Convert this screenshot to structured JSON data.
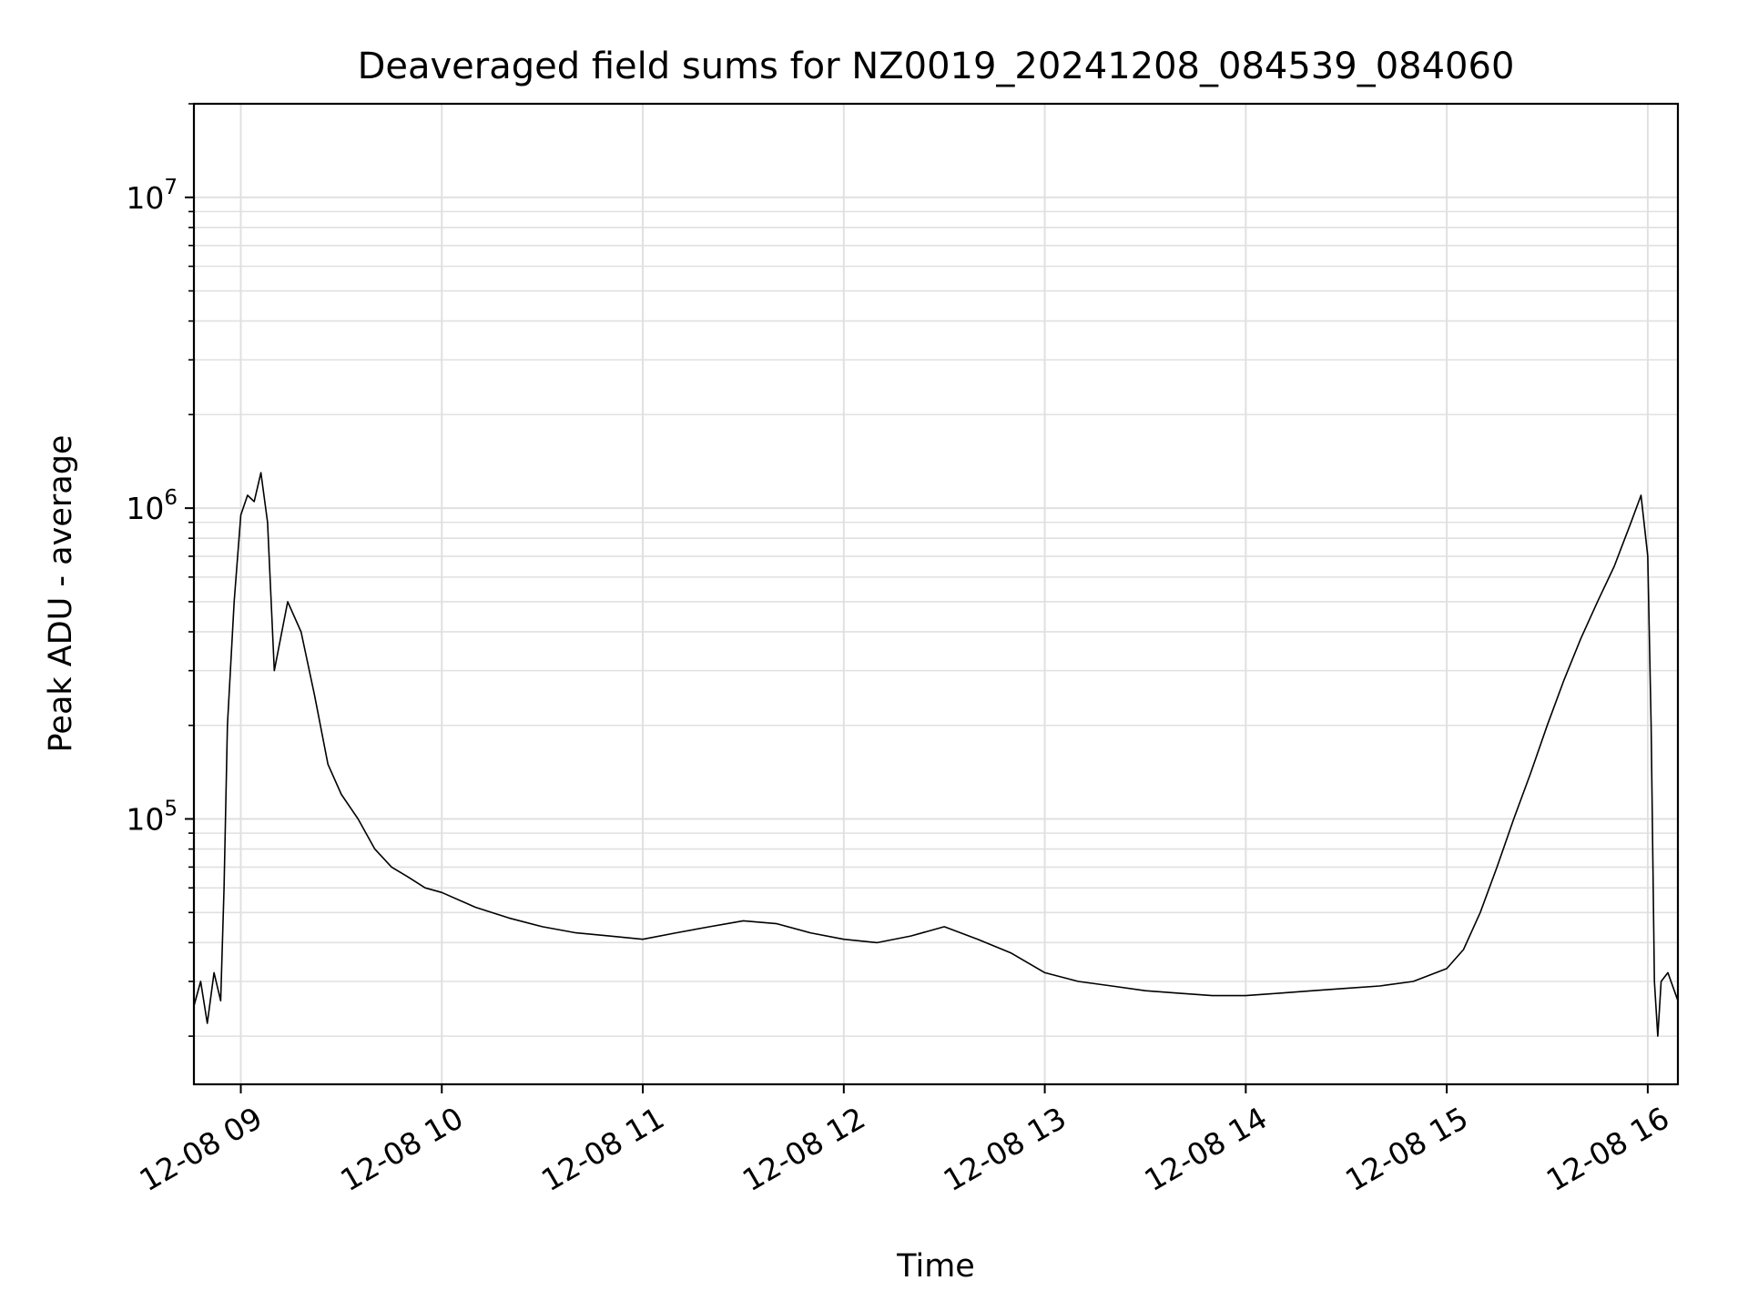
{
  "chart_data": {
    "type": "line",
    "title": "Deaveraged field sums for NZ0019_20241208_084539_084060",
    "xlabel": "Time",
    "ylabel": "Peak ADU - average",
    "yscale": "log",
    "xlim": [
      "2024-12-08 08:46",
      "2024-12-08 16:09"
    ],
    "ylim": [
      14000,
      20000000
    ],
    "grid": true,
    "line_color": "#000000",
    "grid_color": "#e0e0e0",
    "x_ticks": [
      {
        "value": "2024-12-08 09:00",
        "label": "12-08 09"
      },
      {
        "value": "2024-12-08 10:00",
        "label": "12-08 10"
      },
      {
        "value": "2024-12-08 11:00",
        "label": "12-08 11"
      },
      {
        "value": "2024-12-08 12:00",
        "label": "12-08 12"
      },
      {
        "value": "2024-12-08 13:00",
        "label": "12-08 13"
      },
      {
        "value": "2024-12-08 14:00",
        "label": "12-08 14"
      },
      {
        "value": "2024-12-08 15:00",
        "label": "12-08 15"
      },
      {
        "value": "2024-12-08 16:00",
        "label": "12-08 16"
      }
    ],
    "y_ticks": [
      {
        "value": 100000,
        "base": "10",
        "exp": "5"
      },
      {
        "value": 1000000,
        "base": "10",
        "exp": "6"
      },
      {
        "value": 10000000,
        "base": "10",
        "exp": "7"
      }
    ],
    "series": [
      {
        "points": [
          [
            "2024-12-08 08:46",
            25000
          ],
          [
            "2024-12-08 08:48",
            30000
          ],
          [
            "2024-12-08 08:50",
            22000
          ],
          [
            "2024-12-08 08:52",
            32000
          ],
          [
            "2024-12-08 08:54",
            26000
          ],
          [
            "2024-12-08 08:55",
            60000
          ],
          [
            "2024-12-08 08:56",
            200000
          ],
          [
            "2024-12-08 08:58",
            500000
          ],
          [
            "2024-12-08 09:00",
            950000
          ],
          [
            "2024-12-08 09:02",
            1100000
          ],
          [
            "2024-12-08 09:04",
            1050000
          ],
          [
            "2024-12-08 09:06",
            1300000
          ],
          [
            "2024-12-08 09:08",
            900000
          ],
          [
            "2024-12-08 09:10",
            300000
          ],
          [
            "2024-12-08 09:14",
            500000
          ],
          [
            "2024-12-08 09:18",
            400000
          ],
          [
            "2024-12-08 09:22",
            250000
          ],
          [
            "2024-12-08 09:26",
            150000
          ],
          [
            "2024-12-08 09:30",
            120000
          ],
          [
            "2024-12-08 09:35",
            100000
          ],
          [
            "2024-12-08 09:40",
            80000
          ],
          [
            "2024-12-08 09:45",
            70000
          ],
          [
            "2024-12-08 09:50",
            65000
          ],
          [
            "2024-12-08 09:55",
            60000
          ],
          [
            "2024-12-08 10:00",
            58000
          ],
          [
            "2024-12-08 10:10",
            52000
          ],
          [
            "2024-12-08 10:20",
            48000
          ],
          [
            "2024-12-08 10:30",
            45000
          ],
          [
            "2024-12-08 10:40",
            43000
          ],
          [
            "2024-12-08 10:50",
            42000
          ],
          [
            "2024-12-08 11:00",
            41000
          ],
          [
            "2024-12-08 11:10",
            43000
          ],
          [
            "2024-12-08 11:20",
            45000
          ],
          [
            "2024-12-08 11:30",
            47000
          ],
          [
            "2024-12-08 11:40",
            46000
          ],
          [
            "2024-12-08 11:50",
            43000
          ],
          [
            "2024-12-08 12:00",
            41000
          ],
          [
            "2024-12-08 12:10",
            40000
          ],
          [
            "2024-12-08 12:20",
            42000
          ],
          [
            "2024-12-08 12:30",
            45000
          ],
          [
            "2024-12-08 12:40",
            41000
          ],
          [
            "2024-12-08 12:50",
            37000
          ],
          [
            "2024-12-08 13:00",
            32000
          ],
          [
            "2024-12-08 13:10",
            30000
          ],
          [
            "2024-12-08 13:20",
            29000
          ],
          [
            "2024-12-08 13:30",
            28000
          ],
          [
            "2024-12-08 13:40",
            27500
          ],
          [
            "2024-12-08 13:50",
            27000
          ],
          [
            "2024-12-08 14:00",
            27000
          ],
          [
            "2024-12-08 14:10",
            27500
          ],
          [
            "2024-12-08 14:20",
            28000
          ],
          [
            "2024-12-08 14:30",
            28500
          ],
          [
            "2024-12-08 14:40",
            29000
          ],
          [
            "2024-12-08 14:50",
            30000
          ],
          [
            "2024-12-08 15:00",
            33000
          ],
          [
            "2024-12-08 15:05",
            38000
          ],
          [
            "2024-12-08 15:10",
            50000
          ],
          [
            "2024-12-08 15:15",
            70000
          ],
          [
            "2024-12-08 15:20",
            100000
          ],
          [
            "2024-12-08 15:25",
            140000
          ],
          [
            "2024-12-08 15:30",
            200000
          ],
          [
            "2024-12-08 15:35",
            280000
          ],
          [
            "2024-12-08 15:40",
            380000
          ],
          [
            "2024-12-08 15:45",
            500000
          ],
          [
            "2024-12-08 15:50",
            650000
          ],
          [
            "2024-12-08 15:55",
            900000
          ],
          [
            "2024-12-08 15:58",
            1100000
          ],
          [
            "2024-12-08 16:00",
            700000
          ],
          [
            "2024-12-08 16:01",
            200000
          ],
          [
            "2024-12-08 16:02",
            30000
          ],
          [
            "2024-12-08 16:03",
            20000
          ],
          [
            "2024-12-08 16:04",
            30000
          ],
          [
            "2024-12-08 16:06",
            32000
          ],
          [
            "2024-12-08 16:09",
            26000
          ]
        ]
      }
    ]
  }
}
